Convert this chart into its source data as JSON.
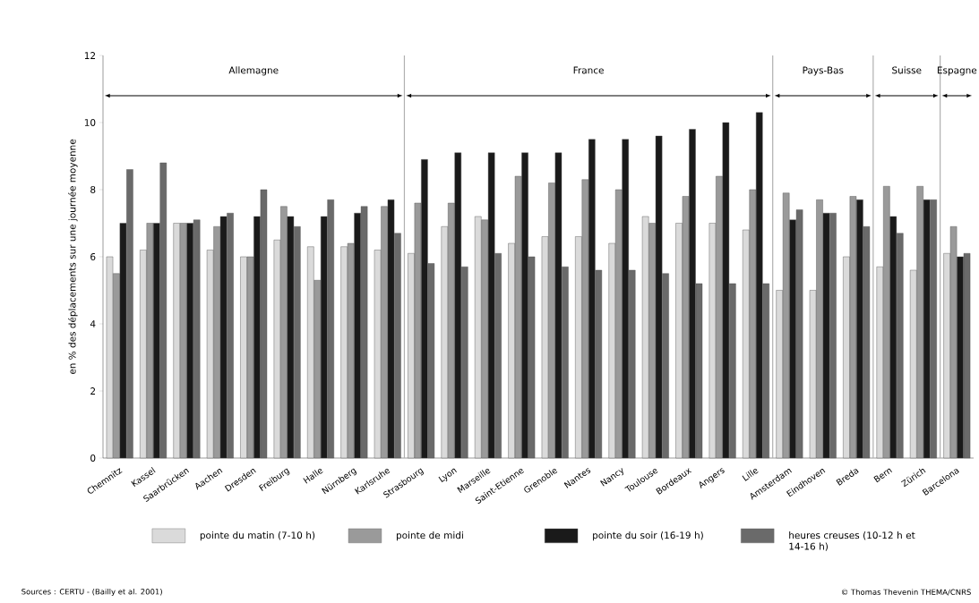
{
  "chart_data": {
    "type": "bar",
    "ylabel": "en % des déplacements sur une journée moyenne",
    "categories": [
      "Chemnitz",
      "Kassel",
      "Saarbrücken",
      "Aachen",
      "Dresden",
      "Freiburg",
      "Halle",
      "Nürnberg",
      "Karlsruhe",
      "Strasbourg",
      "Lyon",
      "Marseille",
      "Saint-Etienne",
      "Grenoble",
      "Nantes",
      "Nancy",
      "Toulouse",
      "Bordeaux",
      "Angers",
      "Lille",
      "Amsterdam",
      "Eindhoven",
      "Breda",
      "Bern",
      "Zürich",
      "Barcelona"
    ],
    "series": [
      {
        "name": "pointe du matin (7-10 h)",
        "color": "#dadada",
        "values": [
          6.0,
          6.2,
          7.0,
          6.2,
          6.0,
          6.5,
          6.3,
          6.3,
          6.2,
          6.1,
          6.9,
          7.2,
          6.4,
          6.6,
          6.6,
          6.4,
          7.2,
          7.0,
          7.0,
          6.8,
          5.0,
          5.0,
          6.0,
          5.7,
          5.6,
          6.1
        ]
      },
      {
        "name": "pointe de midi",
        "color": "#9a9a9a",
        "values": [
          5.5,
          7.0,
          7.0,
          6.9,
          6.0,
          7.5,
          5.3,
          6.4,
          7.5,
          7.6,
          7.6,
          7.1,
          8.4,
          8.2,
          8.3,
          8.0,
          7.0,
          7.8,
          8.4,
          8.0,
          7.9,
          7.7,
          7.8,
          8.1,
          8.1,
          6.9
        ]
      },
      {
        "name": "pointe du soir (16-19 h)",
        "color": "#1a1a1a",
        "values": [
          7.0,
          7.0,
          7.0,
          7.2,
          7.2,
          7.2,
          7.2,
          7.3,
          7.7,
          8.9,
          9.1,
          9.1,
          9.1,
          9.1,
          9.5,
          9.5,
          9.6,
          9.8,
          10.0,
          10.3,
          7.1,
          7.3,
          7.7,
          7.2,
          7.7,
          6.0
        ]
      },
      {
        "name": "heures creuses (10-12 h et 14-16 h)",
        "color": "#6a6a6a",
        "values": [
          8.6,
          8.8,
          7.1,
          7.3,
          8.0,
          6.9,
          7.7,
          7.5,
          6.7,
          5.8,
          5.7,
          6.1,
          6.0,
          5.7,
          5.6,
          5.6,
          5.5,
          5.2,
          5.2,
          5.2,
          7.4,
          7.3,
          6.9,
          6.7,
          7.7,
          6.1
        ]
      }
    ],
    "ylim": [
      0,
      12
    ],
    "yticks": [
      0,
      2,
      4,
      6,
      8,
      10,
      12
    ],
    "grid": false,
    "legend": "bottom",
    "annotations": [
      "Allemagne",
      "France",
      "Pays-Bas",
      "Suisse",
      "Espagne",
      "Sources : CERTU - (Bailly et al. 2001)",
      "© Thomas Thevenin THEMA/CNRS"
    ]
  }
}
